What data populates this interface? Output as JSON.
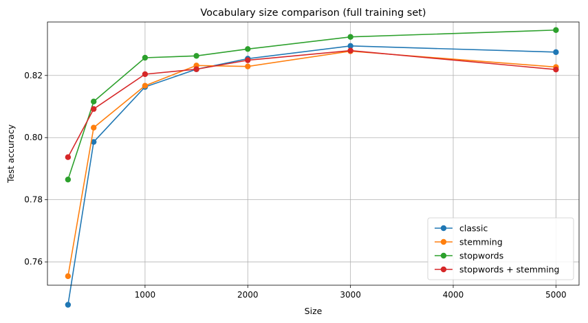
{
  "chart_data": {
    "type": "line",
    "title": "Vocabulary size comparison (full training set)",
    "xlabel": "Size",
    "ylabel": "Test accuracy",
    "xlim": [
      50,
      5225
    ],
    "ylim": [
      0.7525,
      0.8372
    ],
    "xticks": [
      1000,
      2000,
      3000,
      4000,
      5000
    ],
    "yticks": [
      0.76,
      0.78,
      0.8,
      0.82
    ],
    "xtick_labels": [
      "1000",
      "2000",
      "3000",
      "4000",
      "5000"
    ],
    "ytick_labels": [
      "0.76",
      "0.78",
      "0.80",
      "0.82"
    ],
    "grid": true,
    "legend_position": "bottom-right",
    "x": [
      250,
      500,
      1000,
      1500,
      2000,
      3000,
      5000
    ],
    "series": [
      {
        "name": "classic",
        "color": "#1f77b4",
        "values": [
          0.7462,
          0.7986,
          0.8163,
          0.822,
          0.8254,
          0.8295,
          0.8275
        ]
      },
      {
        "name": "stemming",
        "color": "#ff7f0e",
        "values": [
          0.7554,
          0.8032,
          0.8167,
          0.8232,
          0.8229,
          0.8278,
          0.8227
        ]
      },
      {
        "name": "stopwords",
        "color": "#2ca02c",
        "values": [
          0.7865,
          0.8116,
          0.8257,
          0.8263,
          0.8285,
          0.8324,
          0.8346
        ]
      },
      {
        "name": "stopwords + stemming",
        "color": "#d62728",
        "values": [
          0.7937,
          0.8092,
          0.8204,
          0.822,
          0.8249,
          0.828,
          0.8219
        ]
      }
    ]
  }
}
